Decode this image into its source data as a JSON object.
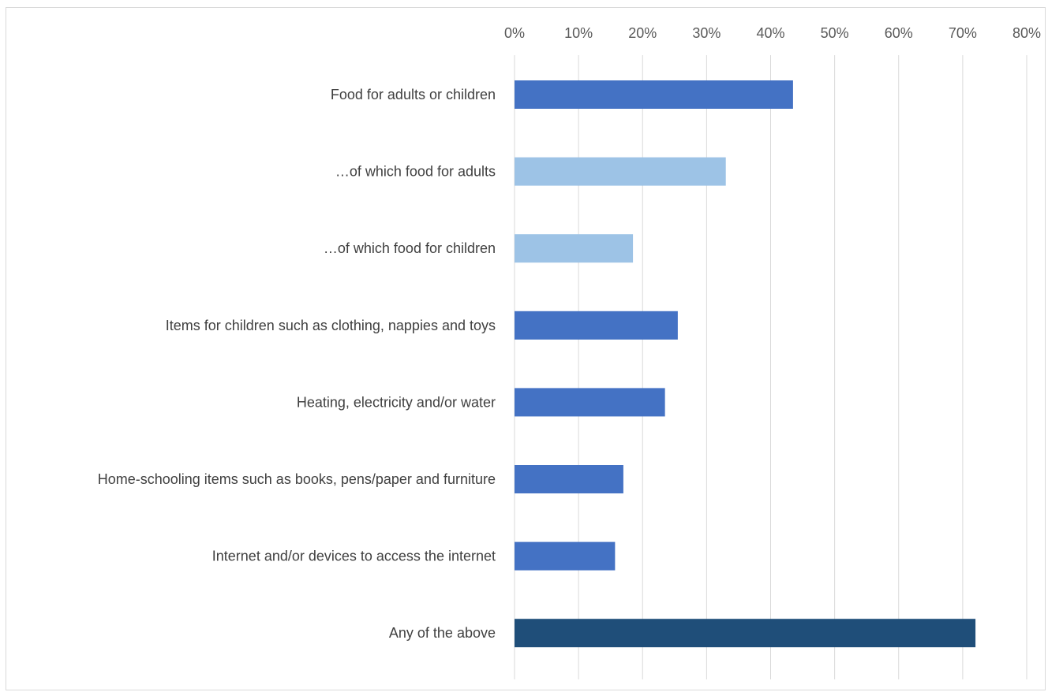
{
  "chart_data": {
    "type": "bar",
    "orientation": "horizontal",
    "title": "",
    "xlabel": "",
    "ylabel": "",
    "xlim": [
      0,
      0.8
    ],
    "x_tick_labels": [
      "0%",
      "10%",
      "20%",
      "30%",
      "40%",
      "50%",
      "60%",
      "70%",
      "80%"
    ],
    "x_axis_position": "top",
    "grid": true,
    "legend": "none",
    "categories": [
      "Food for adults or children",
      "…of which food for adults",
      "…of which food for children",
      "Items for children such as clothing, nappies and toys",
      "Heating, electricity and/or water",
      "Home-schooling items such as books, pens/paper and furniture",
      "Internet and/or devices to access the internet",
      "Any of the above"
    ],
    "values": [
      0.435,
      0.33,
      0.185,
      0.255,
      0.235,
      0.17,
      0.157,
      0.72
    ],
    "bar_colors": [
      "#4472C4",
      "#9DC3E6",
      "#9DC3E6",
      "#4472C4",
      "#4472C4",
      "#4472C4",
      "#4472C4",
      "#1F4E79"
    ]
  }
}
